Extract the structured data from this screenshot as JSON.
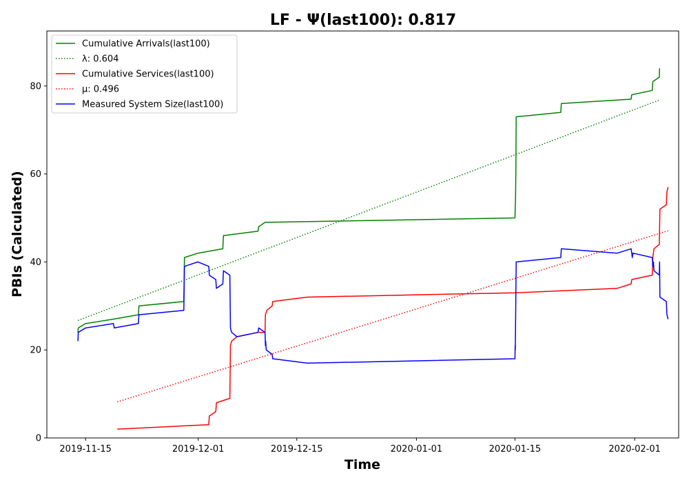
{
  "chart_data": {
    "type": "line",
    "title": "LF -  Ψ(last100): 0.817",
    "xlabel": "Time",
    "ylabel": "PBIs (Calculated)",
    "x_type": "date",
    "xlim": [
      "2019-11-09T12:00",
      "2020-02-07T06:00"
    ],
    "ylim": [
      0,
      92.5
    ],
    "x_ticks": [
      "2019-11-15",
      "2019-12-01",
      "2019-12-15",
      "2020-01-01",
      "2020-01-15",
      "2020-02-01"
    ],
    "y_ticks": [
      0,
      20,
      40,
      60,
      80
    ],
    "legend_position": "top-left",
    "grid": false,
    "series": [
      {
        "name": "Cumulative Arrivals(last100)",
        "color": "#008000",
        "style": "solid",
        "points": [
          [
            "2019-11-13T22:00",
            24
          ],
          [
            "2019-11-13T23:00",
            25
          ],
          [
            "2019-11-15T00:00",
            26
          ],
          [
            "2019-11-18T23:00",
            27
          ],
          [
            "2019-11-22T12:00",
            28
          ],
          [
            "2019-11-22T14:00",
            30
          ],
          [
            "2019-11-28T23:00",
            31
          ],
          [
            "2019-11-29T01:00",
            41
          ],
          [
            "2019-11-30T23:00",
            42
          ],
          [
            "2019-12-04T12:00",
            43
          ],
          [
            "2019-12-04T14:00",
            46
          ],
          [
            "2019-12-09T12:00",
            47
          ],
          [
            "2019-12-09T14:00",
            48
          ],
          [
            "2019-12-10T12:00",
            49
          ],
          [
            "2020-01-15T00:00",
            50
          ],
          [
            "2020-01-15T02:00",
            55
          ],
          [
            "2020-01-15T03:00",
            60
          ],
          [
            "2020-01-15T04:00",
            73
          ],
          [
            "2020-01-21T12:00",
            74
          ],
          [
            "2020-01-21T14:00",
            76
          ],
          [
            "2020-01-31T12:00",
            77
          ],
          [
            "2020-01-31T14:00",
            78
          ],
          [
            "2020-02-03T12:00",
            79
          ],
          [
            "2020-02-03T14:00",
            81
          ],
          [
            "2020-02-04T12:00",
            82
          ],
          [
            "2020-02-04T13:00",
            84
          ]
        ]
      },
      {
        "name": "λ: 0.604",
        "color": "#008000",
        "style": "dotted",
        "points": [
          [
            "2019-11-13T22:00",
            26.7
          ],
          [
            "2020-02-04T12:00",
            76.8
          ]
        ]
      },
      {
        "name": "Cumulative Services(last100)",
        "color": "#ff0000",
        "style": "solid",
        "points": [
          [
            "2019-11-19T12:00",
            2
          ],
          [
            "2019-12-02T12:00",
            3
          ],
          [
            "2019-12-02T14:00",
            5
          ],
          [
            "2019-12-03T12:00",
            6
          ],
          [
            "2019-12-03T14:00",
            8
          ],
          [
            "2019-12-05T12:00",
            9
          ],
          [
            "2019-12-05T14:00",
            21
          ],
          [
            "2019-12-05T18:00",
            22
          ],
          [
            "2019-12-06T12:00",
            23
          ],
          [
            "2019-12-09T12:00",
            24
          ],
          [
            "2019-12-10T12:00",
            24
          ],
          [
            "2019-12-10T13:00",
            28
          ],
          [
            "2019-12-10T18:00",
            29
          ],
          [
            "2019-12-11T12:00",
            30
          ],
          [
            "2019-12-11T14:00",
            31
          ],
          [
            "2019-12-16T12:00",
            32
          ],
          [
            "2020-01-15T00:00",
            33
          ],
          [
            "2020-01-29T12:00",
            34
          ],
          [
            "2020-01-31T12:00",
            35
          ],
          [
            "2020-01-31T14:00",
            36
          ],
          [
            "2020-02-03T12:00",
            37
          ],
          [
            "2020-02-03T14:00",
            41
          ],
          [
            "2020-02-03T18:00",
            43
          ],
          [
            "2020-02-04T12:00",
            44
          ],
          [
            "2020-02-04T14:00",
            52
          ],
          [
            "2020-02-05T12:00",
            53
          ],
          [
            "2020-02-05T14:00",
            56
          ],
          [
            "2020-02-05T18:00",
            57
          ]
        ]
      },
      {
        "name": "μ: 0.496",
        "color": "#ff0000",
        "style": "dotted",
        "points": [
          [
            "2019-11-19T12:00",
            8.2
          ],
          [
            "2020-02-05T18:00",
            47.1
          ]
        ]
      },
      {
        "name": "Measured System Size(last100)",
        "color": "#0000ff",
        "style": "solid",
        "points": [
          [
            "2019-11-13T22:00",
            22
          ],
          [
            "2019-11-13T23:00",
            24
          ],
          [
            "2019-11-15T00:00",
            25
          ],
          [
            "2019-11-18T23:00",
            26
          ],
          [
            "2019-11-19T02:00",
            25
          ],
          [
            "2019-11-22T12:00",
            26
          ],
          [
            "2019-11-22T14:00",
            28
          ],
          [
            "2019-11-28T23:00",
            29
          ],
          [
            "2019-11-29T01:00",
            39
          ],
          [
            "2019-11-30T23:00",
            40
          ],
          [
            "2019-12-02T12:00",
            39
          ],
          [
            "2019-12-02T14:00",
            37
          ],
          [
            "2019-12-03T12:00",
            36
          ],
          [
            "2019-12-03T14:00",
            34
          ],
          [
            "2019-12-04T12:00",
            35
          ],
          [
            "2019-12-04T14:00",
            38
          ],
          [
            "2019-12-05T12:00",
            37
          ],
          [
            "2019-12-05T14:00",
            25
          ],
          [
            "2019-12-05T18:00",
            24
          ],
          [
            "2019-12-06T12:00",
            23
          ],
          [
            "2019-12-09T12:00",
            24
          ],
          [
            "2019-12-09T14:00",
            25
          ],
          [
            "2019-12-10T12:00",
            24
          ],
          [
            "2019-12-10T13:00",
            21
          ],
          [
            "2019-12-10T14:00",
            22
          ],
          [
            "2019-12-10T16:00",
            20
          ],
          [
            "2019-12-11T12:00",
            19
          ],
          [
            "2019-12-11T14:00",
            18
          ],
          [
            "2019-12-16T12:00",
            17
          ],
          [
            "2020-01-15T00:00",
            18
          ],
          [
            "2020-01-15T00:30",
            21
          ],
          [
            "2020-01-15T01:00",
            20
          ],
          [
            "2020-01-15T02:00",
            26
          ],
          [
            "2020-01-15T04:00",
            40
          ],
          [
            "2020-01-21T12:00",
            41
          ],
          [
            "2020-01-21T14:00",
            43
          ],
          [
            "2020-01-29T12:00",
            42
          ],
          [
            "2020-01-31T12:00",
            43
          ],
          [
            "2020-01-31T14:00",
            42
          ],
          [
            "2020-01-31T16:00",
            41
          ],
          [
            "2020-01-31T18:00",
            42
          ],
          [
            "2020-02-03T12:00",
            41
          ],
          [
            "2020-02-03T14:00",
            39
          ],
          [
            "2020-02-03T16:00",
            40
          ],
          [
            "2020-02-03T18:00",
            38
          ],
          [
            "2020-02-04T12:00",
            37
          ],
          [
            "2020-02-04T13:00",
            40
          ],
          [
            "2020-02-04T14:00",
            32
          ],
          [
            "2020-02-05T12:00",
            31
          ],
          [
            "2020-02-05T14:00",
            28
          ],
          [
            "2020-02-05T18:00",
            27
          ]
        ]
      }
    ]
  }
}
